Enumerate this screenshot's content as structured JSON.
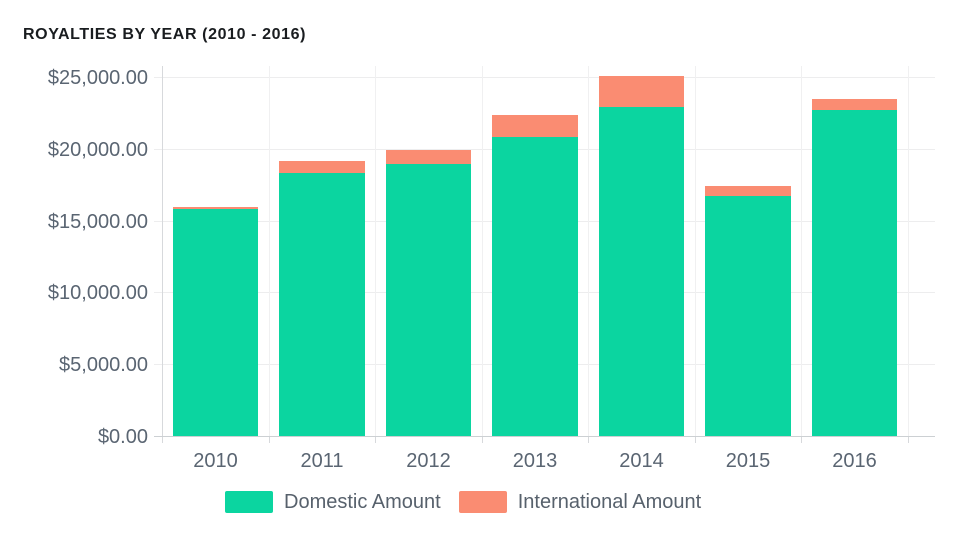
{
  "chart_data": {
    "type": "bar",
    "stacked": true,
    "title": "ROYALTIES BY YEAR (2010 - 2016)",
    "categories": [
      "2010",
      "2011",
      "2012",
      "2013",
      "2014",
      "2015",
      "2016"
    ],
    "series": [
      {
        "name": "Domestic Amount",
        "key": "domestic",
        "color": "#0bd5a0",
        "values": [
          15850,
          18400,
          19000,
          20900,
          23000,
          16800,
          22800
        ]
      },
      {
        "name": "International Amount",
        "key": "international",
        "color": "#fa8c72",
        "values": [
          150,
          800,
          1000,
          1500,
          2150,
          650,
          750
        ]
      }
    ],
    "totals": [
      16000,
      19200,
      20000,
      22400,
      25150,
      17450,
      23550
    ],
    "ylim": [
      0,
      25000
    ],
    "ytick_step": 5000,
    "y_tick_labels": [
      "$0.00",
      "$5,000.00",
      "$10,000.00",
      "$15,000.00",
      "$20,000.00",
      "$25,000.00"
    ],
    "grid": true,
    "legend_position": "bottom",
    "currency": "USD"
  }
}
